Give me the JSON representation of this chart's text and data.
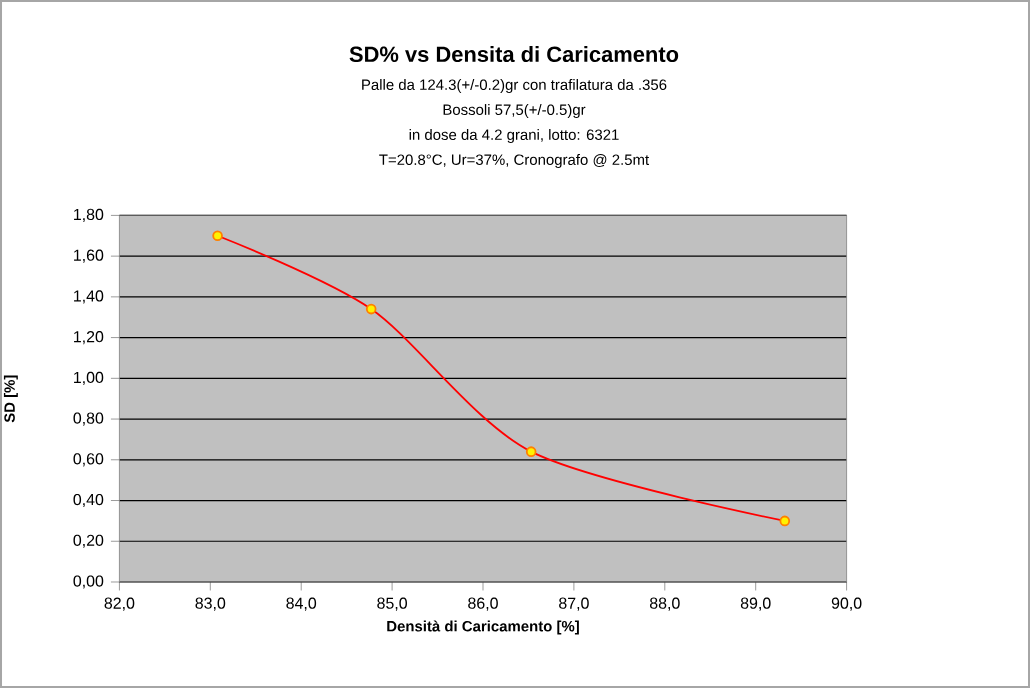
{
  "chart_data": {
    "type": "line",
    "title": "SD% vs Densita di Caricamento",
    "subtitle": "Palle da 124.3(+/-0.2)gr con trafilatura da .356",
    "annotations": [
      "Bossoli 57,5(+/-0.5)gr",
      "in dose da 4.2 grani, lotto: 6321",
      "T=20.8°C, Ur=37%, Cronografo @ 2.5mt"
    ],
    "xlabel": "Densità di Caricamento [%]",
    "ylabel": "SD [%]",
    "x": [
      83.08,
      84.77,
      86.53,
      89.32
    ],
    "series": [
      {
        "color": "#ff0000",
        "values": [
          1.7,
          1.34,
          0.64,
          0.3
        ]
      }
    ],
    "xlim": [
      82,
      90
    ],
    "xticks": [
      {
        "value": 82,
        "label": "82,0"
      },
      {
        "value": 83,
        "label": "83,0"
      },
      {
        "value": 84,
        "label": "84,0"
      },
      {
        "value": 85,
        "label": "85,0"
      },
      {
        "value": 86,
        "label": "86,0"
      },
      {
        "value": 87,
        "label": "87,0"
      },
      {
        "value": 88,
        "label": "88,0"
      },
      {
        "value": 89,
        "label": "89,0"
      },
      {
        "value": 90,
        "label": "90,0"
      }
    ],
    "ylim": [
      0,
      1.8
    ],
    "yticks": [
      {
        "value": 0,
        "label": "0,00"
      },
      {
        "value": 0.2,
        "label": "0,20"
      },
      {
        "value": 0.4,
        "label": "0,40"
      },
      {
        "value": 0.6,
        "label": "0,60"
      },
      {
        "value": 0.8,
        "label": "0,80"
      },
      {
        "value": 1.0,
        "label": "1,00"
      },
      {
        "value": 1.2,
        "label": "1,20"
      },
      {
        "value": 1.4,
        "label": "1,40"
      },
      {
        "value": 1.6,
        "label": "1,60"
      },
      {
        "value": 1.8,
        "label": "1,80"
      }
    ],
    "grid": "y",
    "marker": "circle",
    "line_style": "solid"
  }
}
